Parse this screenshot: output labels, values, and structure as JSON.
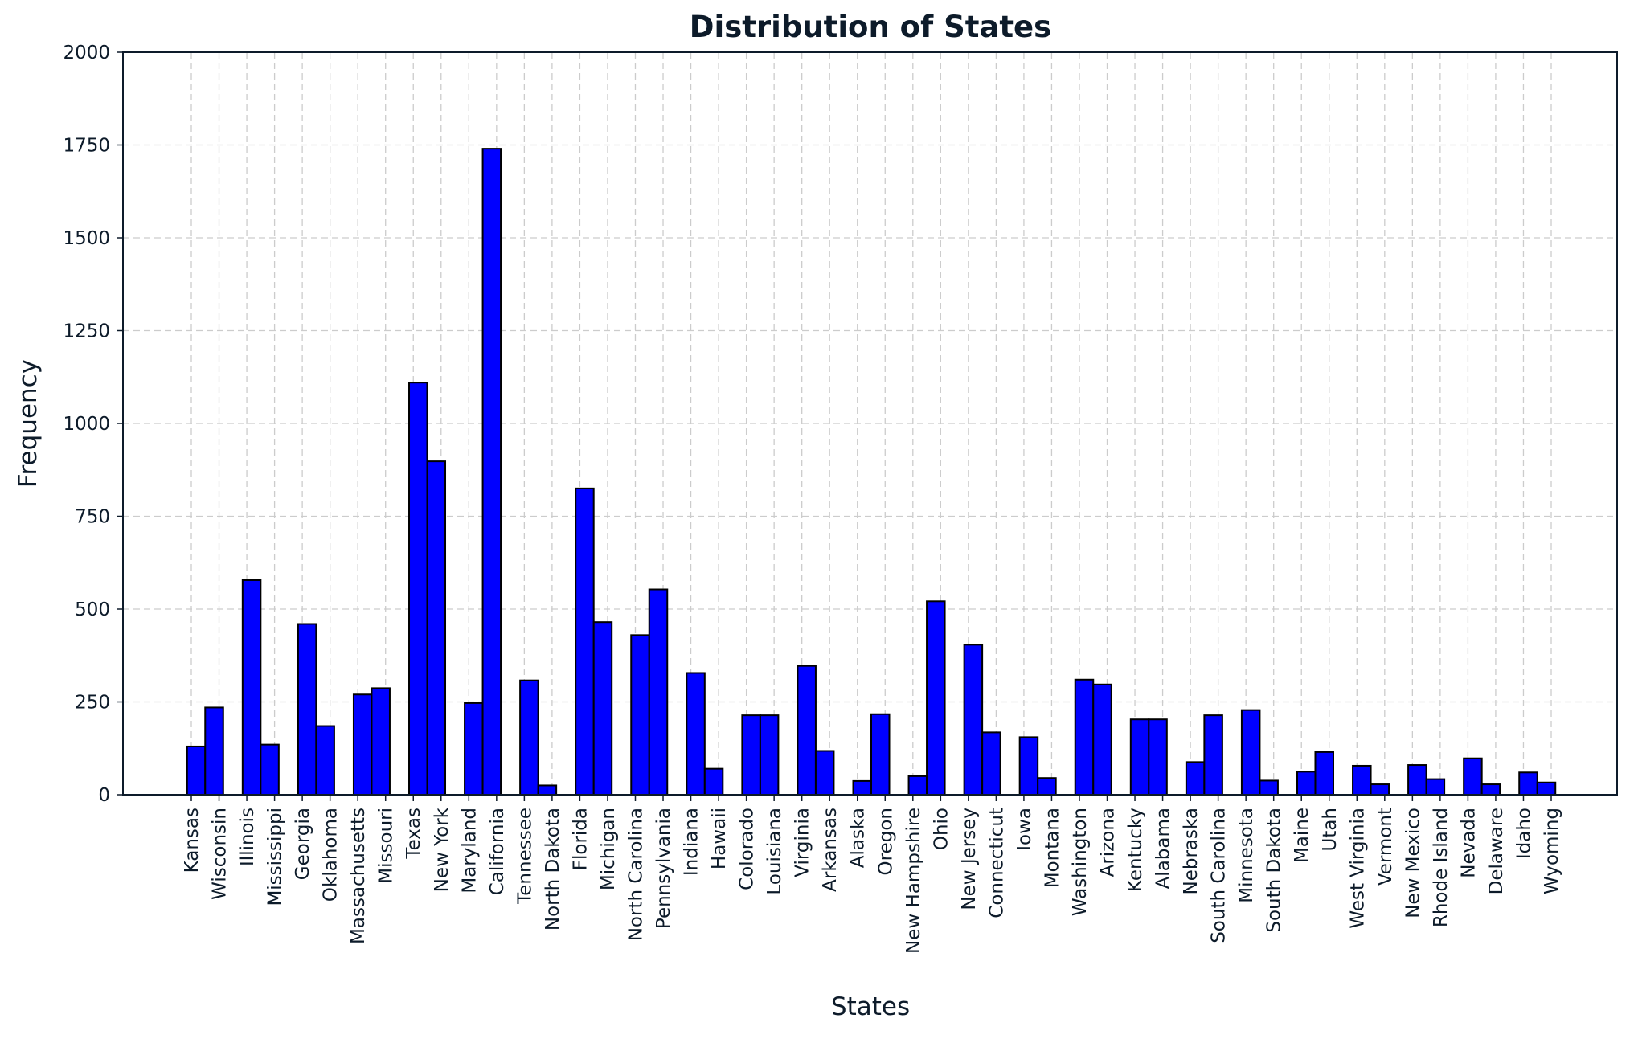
{
  "colors": {
    "bar_fill": "#0000ff",
    "bar_edge": "#000000",
    "grid": "#cccccc",
    "text": "#0d1b2a"
  },
  "chart_data": {
    "type": "bar",
    "title": "Distribution of States",
    "xlabel": "States",
    "ylabel": "Frequency",
    "ylim": [
      0,
      2000
    ],
    "yticks": [
      0,
      250,
      500,
      750,
      1000,
      1250,
      1500,
      1750,
      2000
    ],
    "grid": true,
    "legend": "none",
    "categories": [
      "Kansas",
      "Wisconsin",
      "Illinois",
      "Mississippi",
      "Georgia",
      "Oklahoma",
      "Massachusetts",
      "Missouri",
      "Texas",
      "New York",
      "Maryland",
      "California",
      "Tennessee",
      "North Dakota",
      "Florida",
      "Michigan",
      "North Carolina",
      "Pennsylvania",
      "Indiana",
      "Hawaii",
      "Colorado",
      "Louisiana",
      "Virginia",
      "Arkansas",
      "Alaska",
      "Oregon",
      "New Hampshire",
      "Ohio",
      "New Jersey",
      "Connecticut",
      "Iowa",
      "Montana",
      "Washington",
      "Arizona",
      "Kentucky",
      "Alabama",
      "Nebraska",
      "South Carolina",
      "Minnesota",
      "South Dakota",
      "Maine",
      "Utah",
      "West Virginia",
      "Vermont",
      "New Mexico",
      "Rhode Island",
      "Nevada",
      "Delaware",
      "Idaho",
      "Wyoming"
    ],
    "values": [
      130,
      235,
      578,
      135,
      460,
      185,
      270,
      287,
      1110,
      898,
      247,
      1740,
      308,
      25,
      825,
      465,
      430,
      553,
      328,
      70,
      214,
      214,
      347,
      118,
      37,
      217,
      50,
      521,
      404,
      168,
      155,
      45,
      310,
      297,
      203,
      203,
      88,
      214,
      228,
      38,
      62,
      115,
      78,
      28,
      80,
      42,
      98,
      28,
      60,
      33
    ]
  }
}
